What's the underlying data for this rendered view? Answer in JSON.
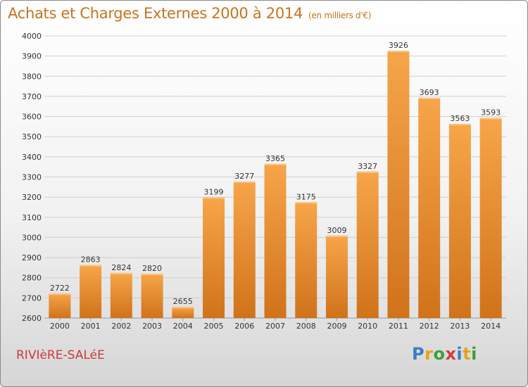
{
  "header": {
    "title": "Achats et Charges Externes 2000 à 2014",
    "unit": "(en milliers d'€)"
  },
  "footer": {
    "commune": "RIVIèRE-SALéE",
    "logo_letters": [
      "P",
      "r",
      "o",
      "x",
      "i",
      "t",
      "i"
    ],
    "logo_colors": [
      "#3a7fc4",
      "#e8a21a",
      "#3aa13a",
      "#d63b3b",
      "#3a7fc4",
      "#e8a21a",
      "#3aa13a"
    ]
  },
  "colors": {
    "bar_top": "#f7a54a",
    "bar_bottom": "#d0731a",
    "grid": "#cfcfcf"
  },
  "chart_data": {
    "type": "bar",
    "title": "Achats et Charges Externes 2000 à 2014",
    "categories": [
      "2000",
      "2001",
      "2002",
      "2003",
      "2004",
      "2005",
      "2006",
      "2007",
      "2008",
      "2009",
      "2010",
      "2011",
      "2012",
      "2013",
      "2014"
    ],
    "values": [
      2722,
      2863,
      2824,
      2820,
      2655,
      3199,
      3277,
      3365,
      3175,
      3009,
      3327,
      3926,
      3693,
      3563,
      3593
    ],
    "ylim": [
      2600,
      4000
    ],
    "yticks": [
      2600,
      2700,
      2800,
      2900,
      3000,
      3100,
      3200,
      3300,
      3400,
      3500,
      3600,
      3700,
      3800,
      3900,
      4000
    ],
    "grid": true,
    "data_labels": true
  }
}
